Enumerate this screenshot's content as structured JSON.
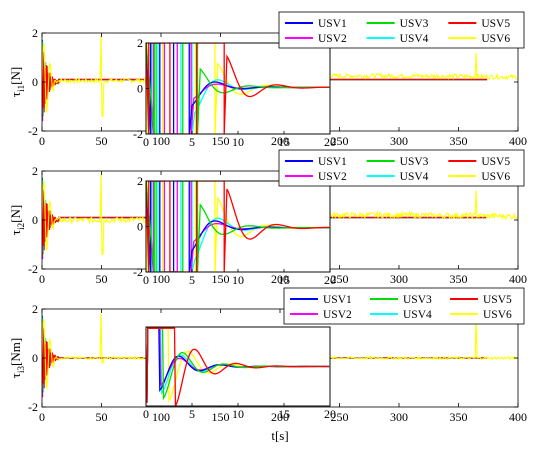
{
  "chart_data": [
    {
      "type": "line",
      "ylabel_main": "τ",
      "ylabel_sub": "i1",
      "ylabel_unit": "[N]",
      "xlim": [
        0,
        400
      ],
      "ylim": [
        -2,
        2
      ],
      "xticks": [
        "0",
        "50",
        "100",
        "150",
        "200",
        "250",
        "300",
        "350",
        "400"
      ],
      "yticks": [
        "2",
        "0",
        "-2"
      ],
      "legend": "top-right",
      "series": [
        {
          "name": "USV1",
          "color": "#0000FF"
        },
        {
          "name": "USV2",
          "color": "#FF00FF"
        },
        {
          "name": "USV3",
          "color": "#00DD00"
        },
        {
          "name": "USV4",
          "color": "#00FFFF"
        },
        {
          "name": "USV5",
          "color": "#FF0000"
        },
        {
          "name": "USV6",
          "color": "#FFFF00"
        }
      ],
      "inset": {
        "xlim": [
          0,
          20
        ],
        "ylim": [
          -2,
          2
        ],
        "xticks": [
          "0",
          "5",
          "10",
          "15",
          "20"
        ],
        "yticks": [
          "2",
          "0",
          "-2"
        ]
      }
    },
    {
      "type": "line",
      "ylabel_main": "τ",
      "ylabel_sub": "i2",
      "ylabel_unit": "[N]",
      "xlim": [
        0,
        400
      ],
      "ylim": [
        -2,
        2
      ],
      "xticks": [
        "0",
        "50",
        "100",
        "150",
        "200",
        "250",
        "300",
        "350",
        "400"
      ],
      "yticks": [
        "2",
        "0",
        "-2"
      ],
      "legend": "top-right",
      "series": [
        {
          "name": "USV1",
          "color": "#0000FF"
        },
        {
          "name": "USV2",
          "color": "#FF00FF"
        },
        {
          "name": "USV3",
          "color": "#00DD00"
        },
        {
          "name": "USV4",
          "color": "#00FFFF"
        },
        {
          "name": "USV5",
          "color": "#FF0000"
        },
        {
          "name": "USV6",
          "color": "#FFFF00"
        }
      ],
      "inset": {
        "xlim": [
          0,
          20
        ],
        "ylim": [
          -2,
          2
        ],
        "xticks": [
          "0",
          "5",
          "10",
          "15",
          "20"
        ],
        "yticks": [
          "2",
          "0",
          "-2"
        ]
      }
    },
    {
      "type": "line",
      "ylabel_main": "τ",
      "ylabel_sub": "i3",
      "ylabel_unit": "[Nm]",
      "xlabel": "t[s]",
      "xlim": [
        0,
        400
      ],
      "ylim": [
        -2,
        2
      ],
      "xticks": [
        "0",
        "50",
        "100",
        "150",
        "200",
        "250",
        "300",
        "350",
        "400"
      ],
      "yticks": [
        "2",
        "0",
        "-2"
      ],
      "legend": "top-right",
      "series": [
        {
          "name": "USV1",
          "color": "#0000FF"
        },
        {
          "name": "USV2",
          "color": "#FF00FF"
        },
        {
          "name": "USV3",
          "color": "#00DD00"
        },
        {
          "name": "USV4",
          "color": "#00FFFF"
        },
        {
          "name": "USV5",
          "color": "#FF0000"
        },
        {
          "name": "USV6",
          "color": "#FFFF00"
        }
      ],
      "inset": {
        "xlim": [
          0,
          20
        ],
        "ylim": [
          -1.5,
          1.5
        ],
        "xticks": [
          "0",
          "5",
          "10",
          "15",
          "20"
        ],
        "yticks": []
      }
    }
  ]
}
